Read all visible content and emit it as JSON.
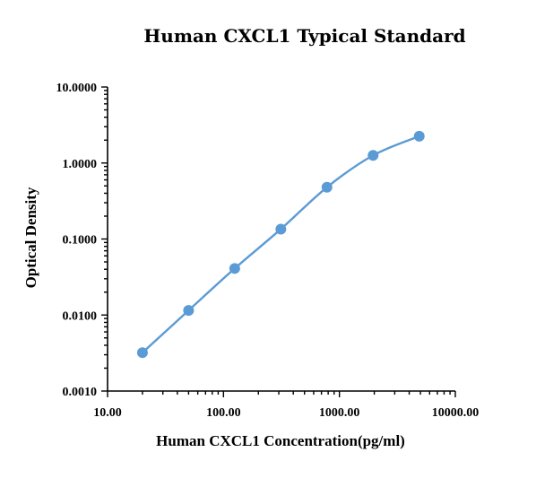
{
  "chart_data": {
    "type": "scatter",
    "title": "Human CXCL1 Typical Standard",
    "xlabel": "Human CXCL1 Concentration(pg/ml)",
    "ylabel": "Optical Density",
    "x_scale": "log",
    "y_scale": "log",
    "xlim": [
      10,
      10000
    ],
    "ylim": [
      0.001,
      10
    ],
    "x_ticks": [
      {
        "value": 10,
        "label": "10.00"
      },
      {
        "value": 100,
        "label": "100.00"
      },
      {
        "value": 1000,
        "label": "1000.00"
      },
      {
        "value": 10000,
        "label": "10000.00"
      }
    ],
    "y_ticks": [
      {
        "value": 0.001,
        "label": "0.0010"
      },
      {
        "value": 0.01,
        "label": "0.0100"
      },
      {
        "value": 0.1,
        "label": "0.1000"
      },
      {
        "value": 1,
        "label": "1.0000"
      },
      {
        "value": 10,
        "label": "10.0000"
      }
    ],
    "grid": false,
    "series": [
      {
        "x": [
          20,
          50,
          125,
          312.5,
          781,
          1953,
          4883
        ],
        "y": [
          0.0032,
          0.0115,
          0.041,
          0.135,
          0.48,
          1.26,
          2.25
        ]
      }
    ],
    "colors": {
      "series": "#5b9bd5",
      "axis": "#000000"
    }
  }
}
